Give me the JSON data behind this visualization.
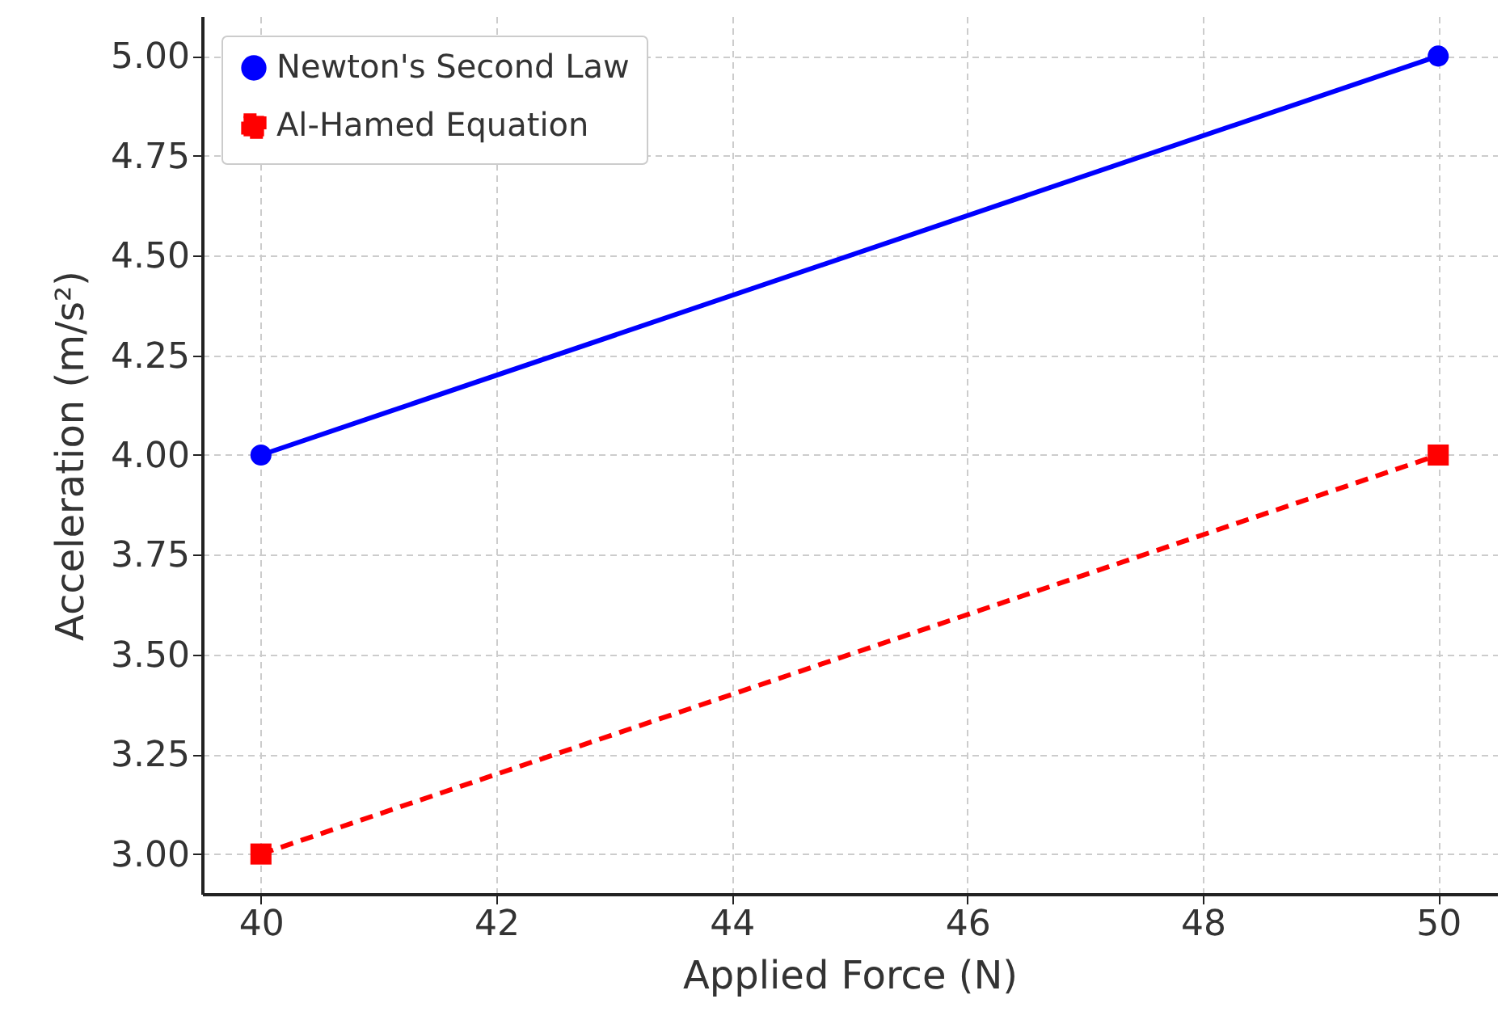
{
  "chart_data": {
    "type": "line",
    "xlabel": "Applied Force (N)",
    "ylabel": "Acceleration (m/s²)",
    "x": [
      40,
      50
    ],
    "series": [
      {
        "name": "Newton's Second Law",
        "color": "#0000ff",
        "values": [
          4,
          5
        ],
        "marker": "circle",
        "line_style": "solid"
      },
      {
        "name": "Al-Hamed Equation",
        "color": "#ff0000",
        "values": [
          3,
          4
        ],
        "marker": "square",
        "line_style": "dashed"
      }
    ],
    "xlim": [
      39.5,
      50.5
    ],
    "xticks": [
      40,
      42,
      44,
      46,
      48,
      50
    ],
    "ylim": [
      2.9,
      5.1
    ],
    "yticks": [
      {
        "value": 3,
        "label": "3.00"
      },
      3.25,
      {
        "value": 3.5,
        "label": "3.50"
      },
      3.75,
      {
        "value": 4,
        "label": "4.00"
      },
      4.25,
      {
        "value": 4.5,
        "label": "4.50"
      },
      4.75,
      {
        "value": 5,
        "label": "5.00"
      }
    ],
    "grid": true,
    "legend": "top left"
  }
}
